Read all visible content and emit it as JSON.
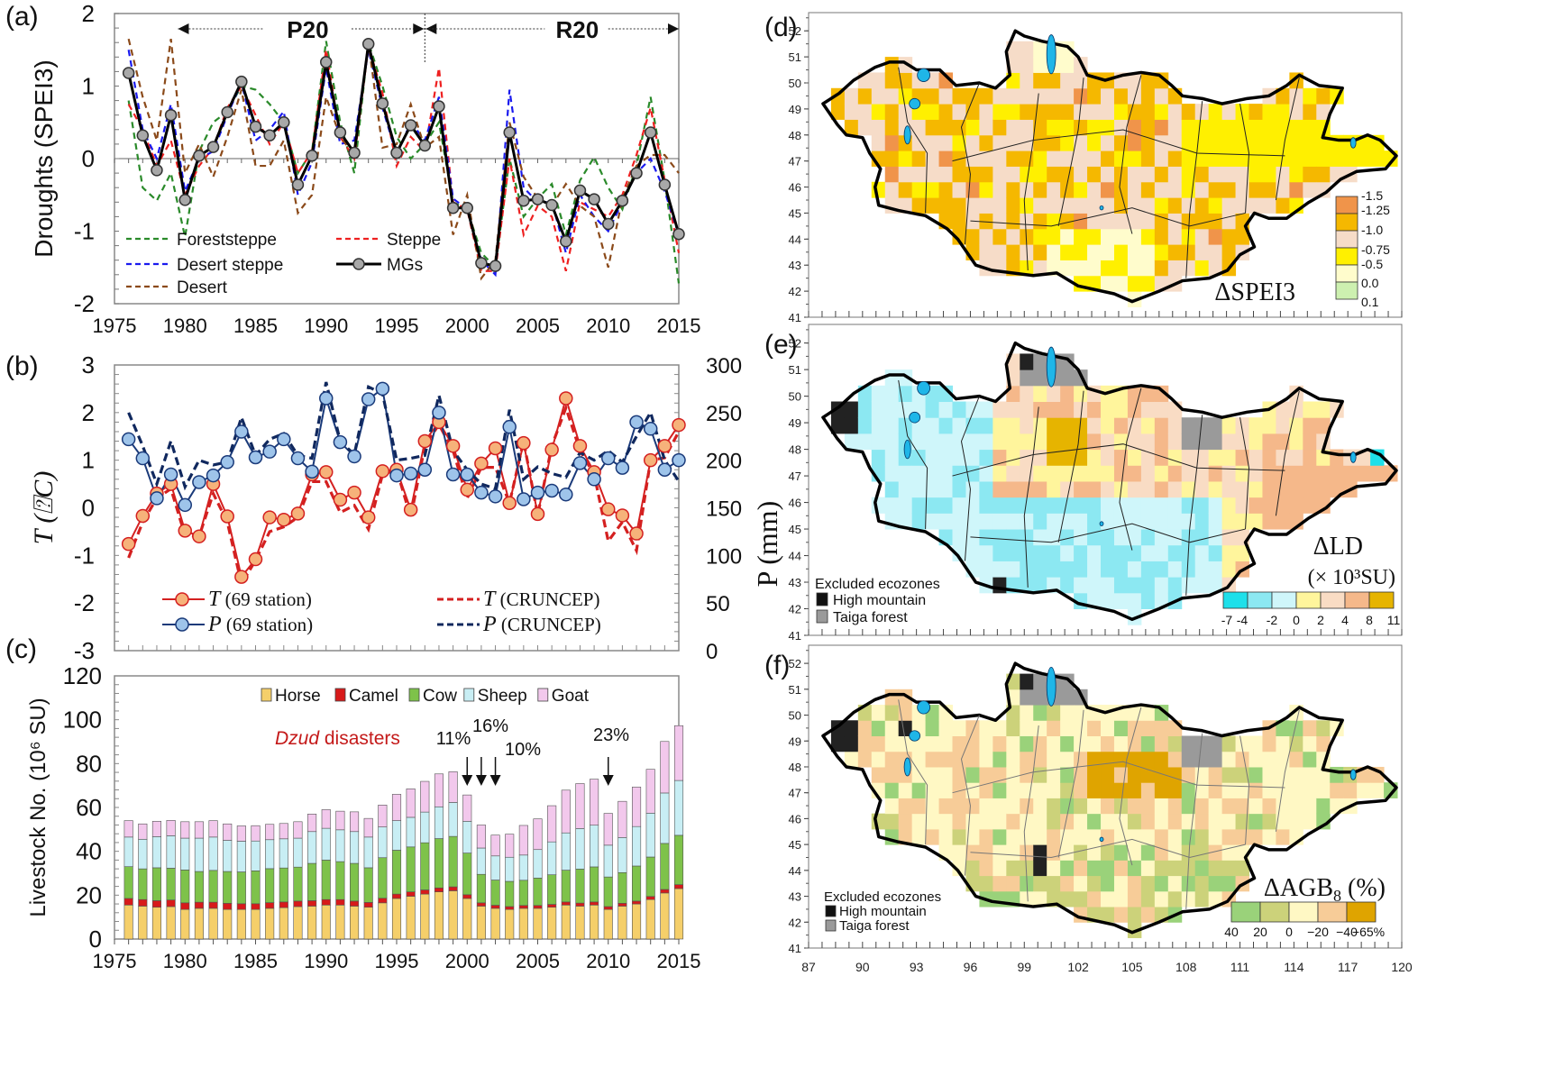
{
  "figure": {
    "panel_labels": [
      "(a)",
      "(b)",
      "(c)",
      "(d)",
      "(e)",
      "(f)"
    ]
  },
  "chart_data": [
    {
      "panel": "(a)",
      "type": "line",
      "title": "",
      "xlabel": "",
      "ylabel": "Droughts (SPEI3)",
      "xlim": [
        1975,
        2015
      ],
      "ylim": [
        -2,
        2
      ],
      "xticks": [
        "1975",
        "1980",
        "1985",
        "1990",
        "1995",
        "2000",
        "2005",
        "2010",
        "2015"
      ],
      "yticks": [
        "-2",
        "-1",
        "0",
        "1",
        "2"
      ],
      "annotations": [
        {
          "text": "P20",
          "span": [
            1980,
            1997
          ]
        },
        {
          "text": "R20",
          "span": [
            1997,
            2015
          ]
        }
      ],
      "legend_position": "bottom-left",
      "x": [
        1976,
        1977,
        1978,
        1979,
        1980,
        1981,
        1982,
        1983,
        1984,
        1985,
        1986,
        1987,
        1988,
        1989,
        1990,
        1991,
        1992,
        1993,
        1994,
        1995,
        1996,
        1997,
        1998,
        1999,
        2000,
        2001,
        2002,
        2003,
        2004,
        2005,
        2006,
        2007,
        2008,
        2009,
        2010,
        2011,
        2012,
        2013,
        2014,
        2015
      ],
      "series": [
        {
          "name": "Foreststeppe",
          "color": "#2a8a2a",
          "style": "dashed",
          "values": [
            0.8,
            -0.4,
            -0.58,
            -0.2,
            -1.08,
            0.1,
            0.5,
            0.65,
            1.0,
            0.95,
            0.75,
            0.5,
            -0.2,
            0.1,
            1.62,
            0.5,
            -0.2,
            1.6,
            1.0,
            0.3,
            0.0,
            0.2,
            0.5,
            -0.6,
            -0.7,
            -1.3,
            -1.5,
            0.0,
            -0.8,
            -0.55,
            -0.35,
            -1.05,
            -0.3,
            0.02,
            -0.4,
            -0.7,
            -0.1,
            0.85,
            -0.3,
            -1.72
          ]
        },
        {
          "name": "Steppe",
          "color": "#ee2020",
          "style": "dashed",
          "values": [
            0.75,
            0.4,
            -0.1,
            0.25,
            -0.5,
            -0.1,
            0.15,
            0.7,
            1.0,
            0.6,
            0.2,
            0.5,
            -0.2,
            0.1,
            1.5,
            0.3,
            0.0,
            1.55,
            0.9,
            -0.1,
            0.3,
            0.1,
            1.25,
            -0.6,
            -0.7,
            -1.55,
            -1.55,
            0.0,
            -1.05,
            -0.65,
            -0.8,
            -1.55,
            -0.6,
            -0.7,
            -0.8,
            -0.5,
            0.05,
            0.7,
            -0.3,
            -1.3
          ]
        },
        {
          "name": "Desert steppe",
          "color": "#1a1aee",
          "style": "dashed",
          "values": [
            1.5,
            0.4,
            0.0,
            0.75,
            -0.45,
            0.0,
            0.1,
            0.6,
            1.05,
            0.25,
            0.4,
            0.65,
            -0.5,
            -0.05,
            1.25,
            0.2,
            0.25,
            1.5,
            0.7,
            0.05,
            0.5,
            0.25,
            0.85,
            -0.55,
            -0.7,
            -1.4,
            -1.6,
            0.95,
            -0.4,
            -0.6,
            -0.6,
            -1.3,
            -0.5,
            -0.8,
            -1.0,
            -0.6,
            -0.2,
            0.0,
            -0.45,
            -1.05
          ]
        },
        {
          "name": "Desert",
          "color": "#8b4a1a",
          "style": "dashed",
          "values": [
            1.65,
            0.85,
            0.25,
            1.65,
            -0.2,
            0.2,
            -0.25,
            0.3,
            0.95,
            -0.1,
            -0.1,
            0.25,
            -0.75,
            -0.5,
            0.85,
            0.3,
            0.05,
            1.6,
            0.15,
            0.2,
            0.75,
            0.15,
            0.3,
            -1.05,
            -0.5,
            -1.65,
            -1.4,
            0.5,
            -0.25,
            -0.55,
            -0.65,
            -0.35,
            -0.65,
            -0.8,
            -1.5,
            -0.55,
            -0.1,
            0.05,
            0.05,
            -0.2
          ]
        },
        {
          "name": "MGs",
          "color": "#000000",
          "style": "solid-marker",
          "values": [
            1.18,
            0.32,
            -0.16,
            0.6,
            -0.57,
            0.04,
            0.16,
            0.64,
            1.06,
            0.44,
            0.32,
            0.5,
            -0.36,
            0.04,
            1.33,
            0.36,
            0.08,
            1.58,
            0.76,
            0.08,
            0.46,
            0.18,
            0.72,
            -0.68,
            -0.68,
            -1.44,
            -1.48,
            0.36,
            -0.58,
            -0.56,
            -0.64,
            -1.14,
            -0.44,
            -0.56,
            -0.9,
            -0.58,
            -0.2,
            0.36,
            -0.36,
            -1.04
          ]
        }
      ]
    },
    {
      "panel": "(b)",
      "type": "line",
      "xlabel": "",
      "ylabel": "T (⍰C)",
      "ylabel_right": "P (mm)",
      "xlim": [
        1975,
        2015
      ],
      "ylim": [
        -3,
        3
      ],
      "ylim_right": [
        0,
        300
      ],
      "yticks": [
        "-3",
        "-2",
        "-1",
        "0",
        "1",
        "2",
        "3"
      ],
      "yticks_right": [
        "0",
        "50",
        "100",
        "150",
        "200",
        "250",
        "300"
      ],
      "legend_position": "bottom",
      "x": [
        1976,
        1977,
        1978,
        1979,
        1980,
        1981,
        1982,
        1983,
        1984,
        1985,
        1986,
        1987,
        1988,
        1989,
        1990,
        1991,
        1992,
        1993,
        1994,
        1995,
        1996,
        1997,
        1998,
        1999,
        2000,
        2001,
        2002,
        2003,
        2004,
        2005,
        2006,
        2007,
        2008,
        2009,
        2010,
        2011,
        2012,
        2013,
        2014,
        2015
      ],
      "series": [
        {
          "name": "T (69 station)",
          "axis": "left",
          "color": "#d42020",
          "marker_fill": "#f6b27a",
          "style": "solid-marker",
          "values": [
            -0.76,
            -0.17,
            0.3,
            0.5,
            -0.48,
            -0.6,
            0.5,
            -0.18,
            -1.45,
            -1.08,
            -0.2,
            -0.25,
            -0.12,
            0.7,
            0.75,
            0.17,
            0.32,
            -0.2,
            0.77,
            0.8,
            -0.04,
            1.4,
            1.8,
            1.3,
            0.38,
            0.93,
            1.25,
            0.1,
            1.36,
            -0.13,
            1.22,
            2.3,
            1.3,
            0.75,
            -0.03,
            -0.16,
            -0.54,
            1.0,
            1.3,
            1.74
          ]
        },
        {
          "name": "T (CRUNCEP)",
          "axis": "left",
          "color": "#d42020",
          "style": "dashed",
          "values": [
            -1.05,
            -0.3,
            0.2,
            0.4,
            -0.58,
            -0.6,
            0.3,
            -0.3,
            -1.6,
            -1.1,
            -0.5,
            -0.4,
            -0.2,
            0.55,
            0.55,
            -0.1,
            0.05,
            -0.45,
            0.7,
            0.8,
            -0.2,
            1.3,
            1.75,
            1.2,
            0.2,
            0.85,
            0.85,
            0.1,
            1.4,
            -0.15,
            1.3,
            2.1,
            1.2,
            0.7,
            -0.7,
            -0.3,
            -0.9,
            1.0,
            1.05,
            1.6
          ]
        },
        {
          "name": "P (69 station)",
          "axis": "right",
          "color": "#1a3a7a",
          "marker_fill": "#9ec4ea",
          "style": "solid-marker",
          "values": [
            222,
            202,
            160,
            185,
            153,
            177,
            184,
            198,
            230,
            203,
            209,
            222,
            202,
            188,
            265,
            219,
            204,
            264,
            275,
            184,
            186,
            190,
            250,
            185,
            185,
            166,
            162,
            235,
            159,
            166,
            168,
            164,
            197,
            180,
            202,
            192,
            240,
            233,
            190,
            200
          ]
        },
        {
          "name": "P (CRUNCEP)",
          "axis": "right",
          "color": "#10285e",
          "style": "dashed",
          "values": [
            250,
            215,
            175,
            220,
            172,
            200,
            195,
            198,
            245,
            205,
            222,
            228,
            205,
            202,
            282,
            220,
            206,
            277,
            270,
            200,
            202,
            205,
            268,
            210,
            190,
            175,
            170,
            253,
            180,
            193,
            186,
            182,
            208,
            200,
            210,
            198,
            225,
            250,
            200,
            178
          ]
        }
      ]
    },
    {
      "panel": "(c)",
      "type": "bar",
      "stacked": true,
      "ylabel": "Livestock No. (10⁶ SU)",
      "xlim": [
        1975,
        2015
      ],
      "ylim": [
        0,
        120
      ],
      "yticks": [
        "0",
        "20",
        "40",
        "60",
        "80",
        "100",
        "120"
      ],
      "xticks": [
        "1975",
        "1980",
        "1985",
        "1990",
        "1995",
        "2000",
        "2005",
        "2010",
        "2015"
      ],
      "legend_position": "top-right",
      "categories": [
        1976,
        1977,
        1978,
        1979,
        1980,
        1981,
        1982,
        1983,
        1984,
        1985,
        1986,
        1987,
        1988,
        1989,
        1990,
        1991,
        1992,
        1993,
        1994,
        1995,
        1996,
        1997,
        1998,
        1999,
        2000,
        2001,
        2002,
        2003,
        2004,
        2005,
        2006,
        2007,
        2008,
        2009,
        2010,
        2011,
        2012,
        2013,
        2014,
        2015
      ],
      "series": [
        {
          "name": "Horse",
          "color": "#f5cf6a",
          "values": [
            15.5,
            15,
            14.5,
            14.8,
            13.5,
            14,
            14,
            13.5,
            13.5,
            13.5,
            14,
            14.3,
            14.8,
            15,
            15.5,
            15.5,
            15,
            14.5,
            16.5,
            18.5,
            19.5,
            20.5,
            21.5,
            22,
            18.5,
            15,
            14,
            13.5,
            14,
            14,
            14.5,
            15.5,
            15,
            15.5,
            13.5,
            15,
            16,
            18,
            21,
            23
          ]
        },
        {
          "name": "Camel",
          "color": "#d71a1a",
          "values": [
            3,
            3,
            3,
            3,
            3,
            2.8,
            2.8,
            2.8,
            2.6,
            2.6,
            2.6,
            2.6,
            2.5,
            2.5,
            2.5,
            2.5,
            2.3,
            2.2,
            2.1,
            2,
            2,
            1.9,
            1.8,
            1.8,
            1.7,
            1.5,
            1.4,
            1.3,
            1.3,
            1.3,
            1.3,
            1.4,
            1.4,
            1.4,
            1.3,
            1.3,
            1.3,
            1.4,
            1.6,
            1.8
          ]
        },
        {
          "name": "Cow",
          "color": "#7ec24a",
          "values": [
            14.5,
            14,
            15,
            14.5,
            15,
            14,
            14.5,
            14.5,
            14.5,
            15,
            15.5,
            15.5,
            15.5,
            17,
            18,
            17.3,
            17.2,
            15.8,
            18.5,
            20,
            20.5,
            21.5,
            22.5,
            23,
            19,
            13,
            11.5,
            11.5,
            11.5,
            12.5,
            13.5,
            14.5,
            15.5,
            16,
            13.5,
            14,
            16,
            18,
            21,
            22.5
          ]
        },
        {
          "name": "Sheep",
          "color": "#c8eef4",
          "values": [
            13.5,
            13.5,
            14.2,
            14.8,
            14.5,
            15.2,
            15.2,
            14.2,
            14,
            13.6,
            13.2,
            13.3,
            13.2,
            14.5,
            14.5,
            14.5,
            14.5,
            14,
            14,
            13.5,
            13.5,
            14,
            14.5,
            15.5,
            14.5,
            12,
            11,
            11,
            11.5,
            13,
            15,
            17,
            18.5,
            19,
            14.5,
            16,
            18,
            20,
            23,
            25
          ]
        },
        {
          "name": "Goat",
          "color": "#f2c8ec",
          "values": [
            7.5,
            7,
            7,
            7,
            7.5,
            7.5,
            7.5,
            7.5,
            7,
            7,
            7,
            7,
            7.5,
            8,
            8.5,
            8.5,
            9,
            8.5,
            10,
            12,
            13,
            14,
            15,
            14,
            12,
            10.5,
            9.5,
            10.5,
            13.5,
            14,
            16.5,
            19.5,
            20.5,
            21,
            14.5,
            16.5,
            18,
            20,
            23.5,
            25
          ]
        }
      ],
      "annotations": [
        {
          "text": "Dzud disasters",
          "color": "#c41a1a"
        },
        {
          "text": "11%",
          "year": 2000
        },
        {
          "text": "16%",
          "year": 2001
        },
        {
          "text": "10%",
          "year": 2002
        },
        {
          "text": "23%",
          "year": 2010
        }
      ]
    }
  ],
  "maps": [
    {
      "panel": "(d)",
      "title": "ΔSPEI3",
      "lat_ticks": [
        "41",
        "42",
        "43",
        "44",
        "45",
        "46",
        "47",
        "48",
        "49",
        "50",
        "51",
        "52"
      ],
      "legend": {
        "labels": [
          "-1.5",
          "-1.25",
          "-1.0",
          "-0.75",
          "-0.5",
          "0.0",
          "0.1"
        ],
        "colors": [
          "#f0944a",
          "#f5b800",
          "#f6dcc8",
          "#fff000",
          "#fffccc",
          "#cdf0b0"
        ]
      }
    },
    {
      "panel": "(e)",
      "title": "ΔLD",
      "subtitle": "(× 10³SU)",
      "lat_ticks": [
        "41",
        "42",
        "43",
        "44",
        "45",
        "46",
        "47",
        "48",
        "49",
        "50",
        "51",
        "52"
      ],
      "excluded_title": "Excluded ecozones",
      "excluded": [
        {
          "label": "High mountain",
          "color": "#111111"
        },
        {
          "label": "Taiga forest",
          "color": "#9a9a9a"
        }
      ],
      "legend": {
        "labels": [
          "-7",
          "-4",
          "-2",
          "0",
          "2",
          "4",
          "8",
          "11"
        ],
        "colors": [
          "#1ee0ea",
          "#8ce8f2",
          "#cff6fa",
          "#fff59c",
          "#f9dcc4",
          "#f5b88a",
          "#e6b400"
        ]
      }
    },
    {
      "panel": "(f)",
      "title": "ΔAGB",
      "title_sub": "8",
      "title_suffix": " (%)",
      "lat_ticks": [
        "41",
        "42",
        "43",
        "44",
        "45",
        "46",
        "47",
        "48",
        "49",
        "50",
        "51",
        "52"
      ],
      "lon_ticks": [
        "87",
        "90",
        "93",
        "96",
        "99",
        "102",
        "105",
        "108",
        "111",
        "114",
        "117",
        "120"
      ],
      "excluded_title": "Excluded ecozones",
      "excluded": [
        {
          "label": "High mountain",
          "color": "#111111"
        },
        {
          "label": "Taiga forest",
          "color": "#9a9a9a"
        }
      ],
      "legend": {
        "labels": [
          "40",
          "20",
          "0",
          "−20",
          "−40",
          "−65%"
        ],
        "colors": [
          "#9ad27a",
          "#ccd27a",
          "#fff8c4",
          "#f7cc98",
          "#dfa400"
        ]
      }
    }
  ]
}
